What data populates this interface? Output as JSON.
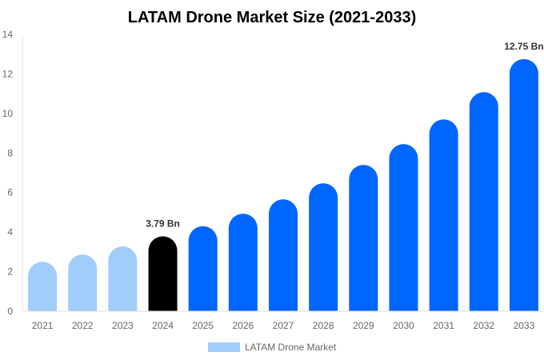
{
  "chart_data": {
    "type": "bar",
    "title": "LATAM Drone Market Size (2021-2033)",
    "xlabel": "",
    "ylabel": "",
    "ylim": [
      0,
      14
    ],
    "yticks": [
      0,
      2,
      4,
      6,
      8,
      10,
      12,
      14
    ],
    "grid": false,
    "legend_placement": "bottom",
    "categories": [
      "2021",
      "2022",
      "2023",
      "2024",
      "2025",
      "2026",
      "2027",
      "2028",
      "2029",
      "2030",
      "2031",
      "2032",
      "2033"
    ],
    "series": [
      {
        "name": "LATAM Drone Market",
        "values": [
          2.5,
          2.87,
          3.28,
          3.79,
          4.3,
          4.93,
          5.66,
          6.47,
          7.4,
          8.45,
          9.7,
          11.08,
          12.75
        ]
      }
    ],
    "bar_colors": [
      "#a0cdfc",
      "#a0cdfc",
      "#a0cdfc",
      "#000000",
      "#0066ff",
      "#0066ff",
      "#0066ff",
      "#0066ff",
      "#0066ff",
      "#0066ff",
      "#0066ff",
      "#0066ff",
      "#0066ff"
    ],
    "legend_color": "#a0cdfc",
    "data_labels": [
      {
        "category": "2024",
        "text": "3.79 Bn"
      },
      {
        "category": "2033",
        "text": "12.75 Bn"
      }
    ]
  }
}
